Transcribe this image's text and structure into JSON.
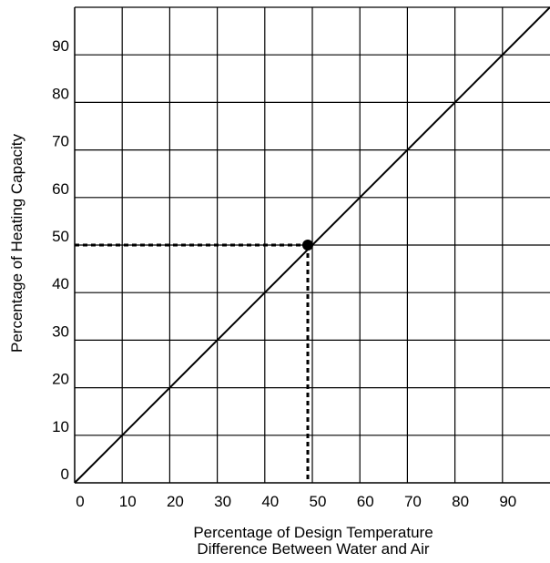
{
  "chart_data": {
    "type": "line",
    "title": "",
    "xlabel": [
      "Percentage of Design Temperature",
      "Difference Between Water and Air"
    ],
    "ylabel": "Percentage of Heating Capacity",
    "xlim": [
      0,
      100
    ],
    "ylim": [
      0,
      100
    ],
    "x_ticks": [
      "0",
      "10",
      "20",
      "30",
      "40",
      "50",
      "60",
      "70",
      "80",
      "90"
    ],
    "y_ticks": [
      "0",
      "10",
      "20",
      "30",
      "40",
      "50",
      "60",
      "70",
      "80",
      "90"
    ],
    "grid": true,
    "series": [
      {
        "x": [
          0,
          100
        ],
        "y": [
          0,
          100
        ]
      }
    ],
    "highlight_point": {
      "x": 50,
      "y": 50
    },
    "colors": {
      "line": "#000000",
      "grid": "#000000",
      "guide": "#000000"
    }
  }
}
